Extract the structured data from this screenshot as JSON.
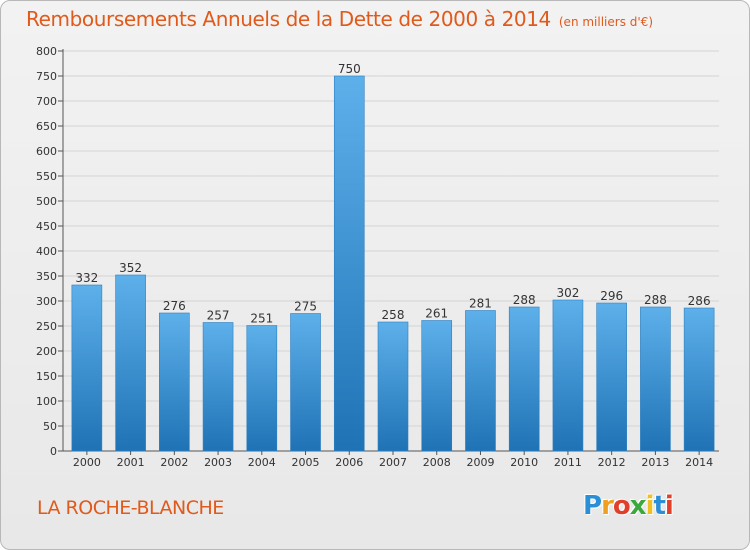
{
  "header": {
    "title": "Remboursements Annuels de la Dette de 2000 à 2014",
    "unit": "(en milliers d'€)"
  },
  "footer": {
    "place": "LA ROCHE-BLANCHE",
    "logo": [
      "P",
      "r",
      "o",
      "x",
      "i",
      "t",
      "i"
    ],
    "logo_colors": [
      "#2a8fd6",
      "#f0a020",
      "#e0402a",
      "#3aa83a",
      "#f0c020",
      "#2a8fd6",
      "#e0402a"
    ]
  },
  "colors": {
    "title": "#e05a1b",
    "bar_top": "#5db0ea",
    "bar_bottom": "#1f73b5"
  },
  "chart_data": {
    "type": "bar",
    "categories": [
      "2000",
      "2001",
      "2002",
      "2003",
      "2004",
      "2005",
      "2006",
      "2007",
      "2008",
      "2009",
      "2010",
      "2011",
      "2012",
      "2013",
      "2014"
    ],
    "values": [
      332,
      352,
      276,
      257,
      251,
      275,
      750,
      258,
      261,
      281,
      288,
      302,
      296,
      288,
      286
    ],
    "value_labels": [
      "332",
      "352",
      "276",
      "257",
      "251",
      "275",
      "750",
      "258",
      "261",
      "281",
      "288",
      "302",
      "296",
      "288",
      "286"
    ],
    "y_ticks": [
      "0",
      "50",
      "100",
      "150",
      "200",
      "250",
      "300",
      "350",
      "400",
      "450",
      "500",
      "550",
      "600",
      "650",
      "700",
      "750",
      "800"
    ],
    "ylim": [
      0,
      800
    ],
    "grid": true,
    "legend": "none"
  }
}
